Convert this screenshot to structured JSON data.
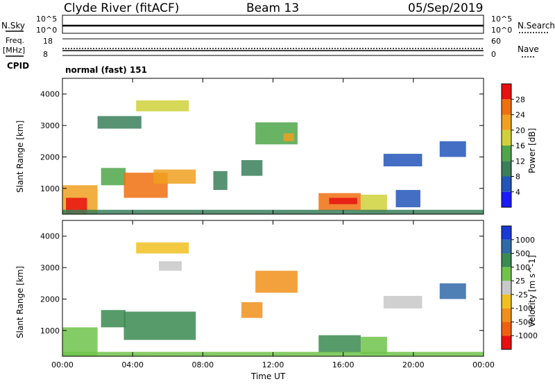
{
  "header": {
    "station": "Clyde River (fitACF)",
    "beam": "Beam 13",
    "date": "05/Sep/2019",
    "cpid_label": "CPID",
    "cpid_value": "normal (fast) 151"
  },
  "nsky_panel": {
    "left_label": "N.Sky",
    "right_label": "N.Search",
    "left_top": "10^5",
    "left_bottom": "10^0",
    "right_top": "10^5",
    "right_bottom": "10^0"
  },
  "freq_panel": {
    "left_label_1": "Freq.",
    "left_label_2": "[MHz]",
    "right_label": "Nave",
    "left_top": "18",
    "left_bottom": "8",
    "right_top": "60",
    "right_bottom": "0"
  },
  "x_axis": {
    "label": "Time UT",
    "ticks": [
      "00:00",
      "04:00",
      "08:00",
      "12:00",
      "16:00",
      "20:00",
      "00:00"
    ],
    "range_hours": [
      0,
      24
    ]
  },
  "y_axis": {
    "label": "Slant Range [km]",
    "ticks": [
      "1000",
      "2000",
      "3000",
      "4000"
    ],
    "range_km": [
      180,
      4500
    ]
  },
  "power_colorbar": {
    "label": "Power [dB]",
    "ticks": [
      "4",
      "8",
      "12",
      "16",
      "20",
      "24",
      "28"
    ],
    "colors": [
      "#1a1aff",
      "#2255b8",
      "#3a7f5a",
      "#4fa64a",
      "#cfd13a",
      "#f0a020",
      "#f07010",
      "#e81010"
    ]
  },
  "velocity_colorbar": {
    "label": "Velocity [m s^-1]",
    "ticks": [
      "1000",
      "500",
      "100",
      "25",
      "-25",
      "-100",
      "-500",
      "-1000"
    ],
    "colors": [
      "#1a3ad6",
      "#2f6aa8",
      "#3b8a50",
      "#6fc34a",
      "#c8c8c8",
      "#f0c020",
      "#f0901a",
      "#f06010",
      "#e81010"
    ]
  },
  "chart_data": [
    {
      "type": "heatmap",
      "panel": "power",
      "x_unit": "hours UT",
      "y_unit": "km",
      "regions": [
        {
          "x0": 0.0,
          "x1": 2.0,
          "y0": 180,
          "y1": 1100,
          "value": 22
        },
        {
          "x0": 0.2,
          "x1": 1.4,
          "y0": 200,
          "y1": 700,
          "value": 28
        },
        {
          "x0": 2.2,
          "x1": 3.6,
          "y0": 1100,
          "y1": 1650,
          "value": 12
        },
        {
          "x0": 3.5,
          "x1": 6.0,
          "y0": 700,
          "y1": 1500,
          "value": 26
        },
        {
          "x0": 5.2,
          "x1": 7.6,
          "y0": 1150,
          "y1": 1600,
          "value": 20
        },
        {
          "x0": 4.2,
          "x1": 7.2,
          "y0": 3450,
          "y1": 3800,
          "value": 16
        },
        {
          "x0": 2.0,
          "x1": 4.5,
          "y0": 2900,
          "y1": 3300,
          "value": 10
        },
        {
          "x0": 8.6,
          "x1": 9.4,
          "y0": 950,
          "y1": 1550,
          "value": 10
        },
        {
          "x0": 10.2,
          "x1": 11.4,
          "y0": 1400,
          "y1": 1900,
          "value": 8
        },
        {
          "x0": 11.0,
          "x1": 13.4,
          "y0": 2400,
          "y1": 3100,
          "value": 14
        },
        {
          "x0": 12.6,
          "x1": 13.2,
          "y0": 2500,
          "y1": 2750,
          "value": 22
        },
        {
          "x0": 14.6,
          "x1": 17.0,
          "y0": 300,
          "y1": 850,
          "value": 24
        },
        {
          "x0": 15.2,
          "x1": 16.8,
          "y0": 500,
          "y1": 700,
          "value": 28
        },
        {
          "x0": 17.0,
          "x1": 18.5,
          "y0": 250,
          "y1": 800,
          "value": 16
        },
        {
          "x0": 18.3,
          "x1": 20.5,
          "y0": 1700,
          "y1": 2100,
          "value": 6
        },
        {
          "x0": 19.0,
          "x1": 20.4,
          "y0": 400,
          "y1": 950,
          "value": 6
        },
        {
          "x0": 21.5,
          "x1": 23.0,
          "y0": 2000,
          "y1": 2500,
          "value": 6
        },
        {
          "x0": 0.0,
          "x1": 24.0,
          "y0": 180,
          "y1": 320,
          "value": 8
        }
      ]
    },
    {
      "type": "heatmap",
      "panel": "velocity",
      "x_unit": "hours UT",
      "y_unit": "km",
      "regions": [
        {
          "x0": 0.0,
          "x1": 2.0,
          "y0": 180,
          "y1": 1100,
          "value": 25
        },
        {
          "x0": 2.2,
          "x1": 3.6,
          "y0": 1100,
          "y1": 1650,
          "value": 300
        },
        {
          "x0": 3.5,
          "x1": 7.6,
          "y0": 700,
          "y1": 1600,
          "value": 200
        },
        {
          "x0": 4.2,
          "x1": 7.2,
          "y0": 3450,
          "y1": 3800,
          "value": -50
        },
        {
          "x0": 5.5,
          "x1": 6.8,
          "y0": 2900,
          "y1": 3200,
          "value": 0
        },
        {
          "x0": 10.2,
          "x1": 11.4,
          "y0": 1400,
          "y1": 1900,
          "value": -300
        },
        {
          "x0": 11.0,
          "x1": 13.4,
          "y0": 2200,
          "y1": 2900,
          "value": -300
        },
        {
          "x0": 14.6,
          "x1": 17.0,
          "y0": 300,
          "y1": 850,
          "value": 300
        },
        {
          "x0": 17.0,
          "x1": 18.5,
          "y0": 250,
          "y1": 800,
          "value": 60
        },
        {
          "x0": 18.3,
          "x1": 20.5,
          "y0": 1700,
          "y1": 2100,
          "value": 0
        },
        {
          "x0": 21.5,
          "x1": 23.0,
          "y0": 2000,
          "y1": 2500,
          "value": 600
        },
        {
          "x0": 0.0,
          "x1": 24.0,
          "y0": 180,
          "y1": 320,
          "value": 60
        }
      ]
    }
  ]
}
